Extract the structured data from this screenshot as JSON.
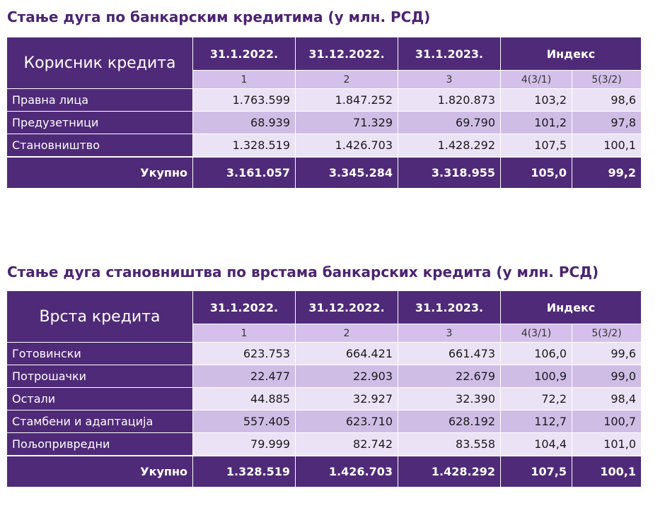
{
  "table1": {
    "title": "Стање дуга по банкарским кредитима (у млн. РСД)",
    "corner": "Корисник кредита",
    "dates": [
      "31.1.2022.",
      "31.12.2022.",
      "31.1.2023."
    ],
    "index_label": "Индекс",
    "subheaders": [
      "1",
      "2",
      "3",
      "4(3/1)",
      "5(3/2)"
    ],
    "rows": [
      {
        "label": "Правна лица",
        "values": [
          "1.763.599",
          "1.847.252",
          "1.820.873",
          "103,2",
          "98,6"
        ]
      },
      {
        "label": "Предузетници",
        "values": [
          "68.939",
          "71.329",
          "69.790",
          "101,2",
          "97,8"
        ]
      },
      {
        "label": "Становништво",
        "values": [
          "1.328.519",
          "1.426.703",
          "1.428.292",
          "107,5",
          "100,1"
        ]
      }
    ],
    "total": {
      "label": "Укупно",
      "values": [
        "3.161.057",
        "3.345.284",
        "3.318.955",
        "105,0",
        "99,2"
      ]
    }
  },
  "table2": {
    "title": "Стање дуга становништва по врстама банкарских кредита (у млн. РСД)",
    "corner": "Врста кредита",
    "dates": [
      "31.1.2022.",
      "31.12.2022.",
      "31.1.2023."
    ],
    "index_label": "Индекс",
    "subheaders": [
      "1",
      "2",
      "3",
      "4(3/1)",
      "5(3/2)"
    ],
    "rows": [
      {
        "label": "Готовински",
        "values": [
          "623.753",
          "664.421",
          "661.473",
          "106,0",
          "99,6"
        ]
      },
      {
        "label": "Потрошачки",
        "values": [
          "22.477",
          "22.903",
          "22.679",
          "100,9",
          "99,0"
        ]
      },
      {
        "label": "Остали",
        "values": [
          "44.885",
          "32.927",
          "32.390",
          "72,2",
          "98,4"
        ]
      },
      {
        "label": "Стамбени и адаптација",
        "values": [
          "557.405",
          "623.710",
          "628.192",
          "112,7",
          "100,7"
        ]
      },
      {
        "label": "Пољопривредни",
        "values": [
          "79.999",
          "82.742",
          "83.558",
          "104,4",
          "101,0"
        ]
      }
    ],
    "total": {
      "label": "Укупно",
      "values": [
        "1.328.519",
        "1.426.703",
        "1.428.292",
        "107,5",
        "100,1"
      ]
    }
  },
  "colors": {
    "header": "#4f2a78",
    "subheader": "#d4c0ea",
    "row_light": "#ebe2f5",
    "row_dark": "#cfbde6",
    "title": "#4b2372"
  }
}
